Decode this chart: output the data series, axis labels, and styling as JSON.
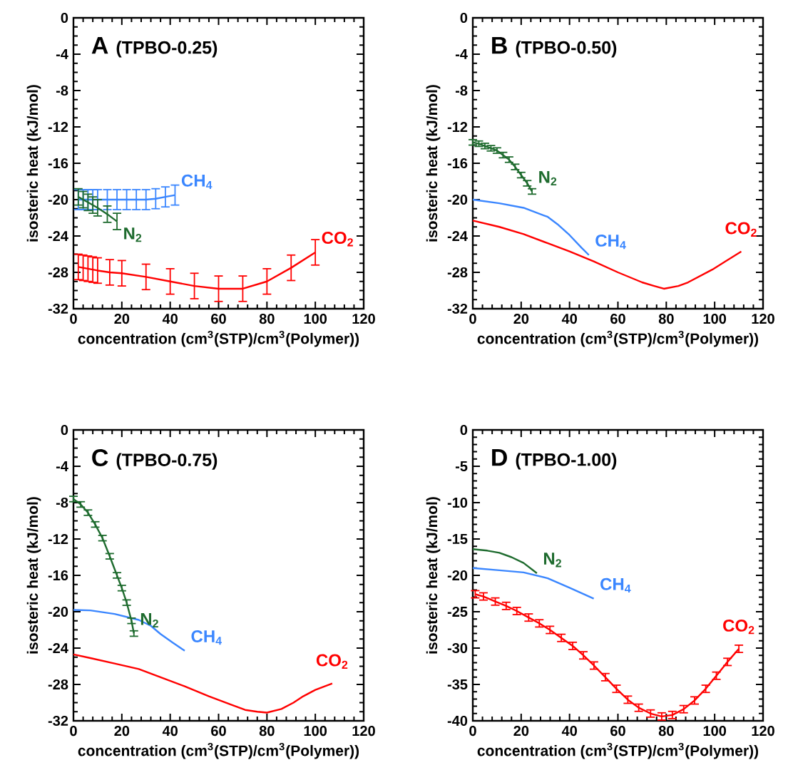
{
  "chart_data": [
    {
      "type": "line",
      "title": "A",
      "subtitle": "(TPBO-0.25)",
      "xlabel": "concentration (cm$^{3}$(STP)/cm$^{3}$(Polymer))",
      "ylabel": "isosteric heat (kJ/mol)",
      "xlim": [
        0,
        120
      ],
      "ylim": [
        -32,
        0
      ],
      "xticks": [
        0,
        20,
        40,
        60,
        80,
        100,
        120
      ],
      "yticks": [
        -32,
        -28,
        -24,
        -20,
        -16,
        -12,
        -8,
        -4,
        0
      ],
      "series": [
        {
          "name": "CO$_{2}$",
          "color": "#ff0000",
          "x": [
            2,
            4,
            6,
            8,
            10,
            15,
            20,
            30,
            40,
            50,
            60,
            70,
            80,
            90,
            100
          ],
          "values": [
            -27.4,
            -27.5,
            -27.6,
            -27.7,
            -27.8,
            -28.0,
            -28.1,
            -28.5,
            -29.0,
            -29.5,
            -29.8,
            -29.8,
            -29.0,
            -27.5,
            -25.8
          ],
          "errors": [
            1.4,
            1.4,
            1.4,
            1.4,
            1.4,
            1.4,
            1.4,
            1.4,
            1.4,
            1.4,
            1.4,
            1.4,
            1.4,
            1.4,
            1.4
          ]
        },
        {
          "name": "CH$_{4}$",
          "color": "#3a86ff",
          "x": [
            2,
            4,
            6,
            8,
            10,
            14,
            18,
            22,
            26,
            30,
            34,
            38,
            42
          ],
          "values": [
            -20,
            -20,
            -20,
            -20,
            -20,
            -20,
            -20,
            -20,
            -20,
            -20,
            -19.9,
            -19.7,
            -19.5
          ],
          "errors": [
            1.1,
            1.1,
            1.1,
            1.1,
            1.1,
            1.1,
            1.1,
            1.1,
            1.1,
            1.1,
            1.1,
            1.1,
            1.1
          ]
        },
        {
          "name": "N$_{2}$",
          "color": "#1e6b2e",
          "x": [
            2,
            4,
            6,
            8,
            10,
            14,
            18
          ],
          "values": [
            -19.7,
            -20.0,
            -20.3,
            -20.6,
            -20.9,
            -21.6,
            -22.4
          ],
          "errors": [
            0.9,
            0.9,
            0.9,
            0.9,
            0.9,
            0.9,
            0.9
          ]
        }
      ]
    },
    {
      "type": "line",
      "title": "B",
      "subtitle": "(TPBO-0.50)",
      "xlabel": "concentration (cm$^{3}$(STP)/cm$^{3}$(Polymer))",
      "ylabel": "isosteric heat (kJ/mol)",
      "xlim": [
        0,
        120
      ],
      "ylim": [
        -32,
        0
      ],
      "xticks": [
        0,
        20,
        40,
        60,
        80,
        100,
        120
      ],
      "yticks": [
        -32,
        -28,
        -24,
        -20,
        -16,
        -12,
        -8,
        -4,
        0
      ],
      "series": [
        {
          "name": "CO$_{2}$",
          "color": "#ff0000",
          "x": [
            0,
            11,
            21,
            31,
            40,
            50,
            60,
            70,
            75,
            79,
            85,
            89,
            99,
            111
          ],
          "values": [
            -22.3,
            -23.0,
            -23.8,
            -24.8,
            -25.7,
            -26.8,
            -28.0,
            -29.1,
            -29.5,
            -29.8,
            -29.5,
            -29.1,
            -27.7,
            -25.7
          ]
        },
        {
          "name": "CH$_{4}$",
          "color": "#3a86ff",
          "x": [
            0,
            11,
            21,
            31,
            35,
            40,
            45,
            48
          ],
          "values": [
            -20.0,
            -20.4,
            -20.9,
            -21.9,
            -22.7,
            -23.9,
            -25.3,
            -26.1
          ]
        },
        {
          "name": "N$_{2}$",
          "color": "#1e6b2e",
          "x": [
            0,
            2.5,
            5,
            7.5,
            10,
            12.5,
            15,
            17.5,
            20,
            22.5,
            24.5
          ],
          "values": [
            -13.7,
            -13.85,
            -14.1,
            -14.35,
            -14.6,
            -15.1,
            -15.6,
            -16.4,
            -17.3,
            -18.2,
            -19.1
          ],
          "errors": [
            0.3,
            0.3,
            0.3,
            0.3,
            0.3,
            0.3,
            0.3,
            0.3,
            0.3,
            0.3,
            0.3
          ]
        }
      ]
    },
    {
      "type": "line",
      "title": "C",
      "subtitle": "(TPBO-0.75)",
      "xlabel": "concentration (cm$^{3}$(STP)/cm$^{3}$(Polymer))",
      "ylabel": "isosteric heat (kJ/mol)",
      "xlim": [
        0,
        120
      ],
      "ylim": [
        -32,
        0
      ],
      "xticks": [
        0,
        20,
        40,
        60,
        80,
        100,
        120
      ],
      "yticks": [
        -32,
        -28,
        -24,
        -20,
        -16,
        -12,
        -8,
        -4,
        0
      ],
      "series": [
        {
          "name": "CO$_{2}$",
          "color": "#ff0000",
          "x": [
            0,
            7,
            17,
            27,
            36,
            46,
            56,
            66,
            71,
            76,
            80,
            86,
            91,
            95,
            100,
            107
          ],
          "values": [
            -24.7,
            -25.1,
            -25.7,
            -26.3,
            -27.2,
            -28.2,
            -29.3,
            -30.3,
            -30.8,
            -31.0,
            -31.1,
            -30.7,
            -30.0,
            -29.3,
            -28.6,
            -27.9
          ]
        },
        {
          "name": "CH$_{4}$",
          "color": "#3a86ff",
          "x": [
            0,
            7,
            17,
            27,
            32,
            36,
            41,
            46
          ],
          "values": [
            -19.8,
            -19.85,
            -20.25,
            -20.9,
            -21.55,
            -22.45,
            -23.4,
            -24.3
          ]
        },
        {
          "name": "N$_{2}$",
          "color": "#1e6b2e",
          "x": [
            0,
            3,
            6,
            9,
            12,
            15,
            18,
            20,
            22,
            24,
            25
          ],
          "values": [
            -7.6,
            -8.2,
            -9.1,
            -10.4,
            -11.9,
            -13.9,
            -16.0,
            -17.4,
            -19.0,
            -21.0,
            -22.4
          ],
          "errors": [
            0.3,
            0.3,
            0.3,
            0.3,
            0.3,
            0.3,
            0.3,
            0.3,
            0.3,
            0.3,
            0.3
          ]
        }
      ]
    },
    {
      "type": "line",
      "title": "D",
      "subtitle": "(TPBO-1.00)",
      "xlabel": "concentration (cm$^{3}$(STP)/cm$^{3}$(Polymer))",
      "ylabel": "isosteric heat (kJ/mol)",
      "xlim": [
        0,
        120
      ],
      "ylim": [
        -40,
        0
      ],
      "xticks": [
        0,
        20,
        40,
        60,
        80,
        100,
        120
      ],
      "yticks": [
        -40,
        -35,
        -30,
        -25,
        -20,
        -15,
        -10,
        -5,
        0
      ],
      "series": [
        {
          "name": "CO$_{2}$",
          "color": "#ff0000",
          "x": [
            1,
            4.4,
            9.3,
            13.8,
            18.2,
            23.1,
            27.5,
            31.9,
            36.6,
            41.3,
            45.7,
            50.1,
            54.8,
            59.4,
            64.1,
            68.6,
            73.5,
            78.1,
            82.5,
            87.2,
            91.7,
            96.3,
            100.7,
            105.3,
            110
          ],
          "values": [
            -22.6,
            -22.9,
            -23.6,
            -24.2,
            -24.9,
            -25.8,
            -26.6,
            -27.5,
            -28.6,
            -29.7,
            -31.0,
            -32.4,
            -34.0,
            -35.6,
            -37.1,
            -38.2,
            -39.0,
            -39.4,
            -39.2,
            -38.4,
            -37.2,
            -35.6,
            -33.8,
            -31.9,
            -30.1
          ],
          "errors": [
            0.5,
            0.5,
            0.5,
            0.5,
            0.5,
            0.5,
            0.5,
            0.5,
            0.5,
            0.5,
            0.5,
            0.5,
            0.5,
            0.5,
            0.5,
            0.5,
            0.5,
            0.5,
            0.5,
            0.5,
            0.5,
            0.5,
            0.5,
            0.5,
            0.5
          ]
        },
        {
          "name": "CH$_{4}$",
          "color": "#3a86ff",
          "x": [
            0,
            11,
            21,
            31,
            40,
            50
          ],
          "values": [
            -19.0,
            -19.3,
            -19.6,
            -20.4,
            -21.7,
            -23.2
          ]
        },
        {
          "name": "N$_{2}$",
          "color": "#1e6b2e",
          "x": [
            0,
            6,
            11,
            16,
            21,
            26.5
          ],
          "values": [
            -16.4,
            -16.6,
            -16.9,
            -17.5,
            -18.3,
            -19.7
          ]
        }
      ]
    }
  ]
}
